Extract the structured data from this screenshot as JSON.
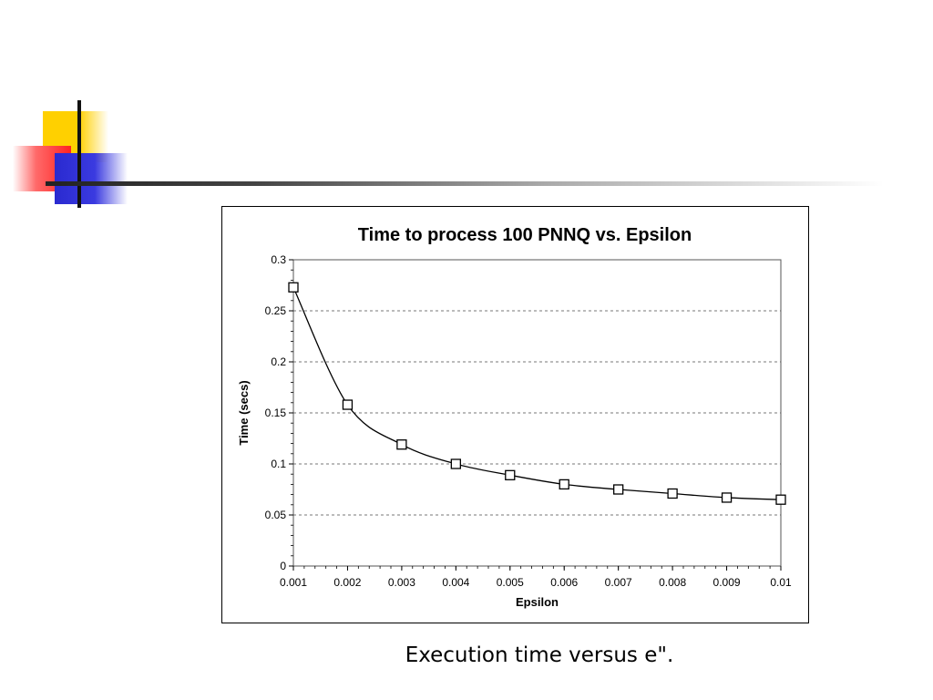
{
  "caption": "Execution time versus  e\".",
  "colors": {
    "yellow": "#ffd000",
    "red": "#ff2222",
    "blue": "#2a2ad0",
    "line": "#000000"
  },
  "chart_data": {
    "type": "line",
    "title": "Time to process 100 PNNQ vs. Epsilon",
    "xlabel": "Epsilon",
    "ylabel": "Time (secs)",
    "xlim": [
      0.001,
      0.01
    ],
    "ylim": [
      0,
      0.3
    ],
    "x_ticks": [
      "0.001",
      "0.002",
      "0.003",
      "0.004",
      "0.005",
      "0.006",
      "0.007",
      "0.008",
      "0.009",
      "0.01"
    ],
    "y_ticks": [
      "0",
      "0.05",
      "0.1",
      "0.15",
      "0.2",
      "0.25",
      "0.3"
    ],
    "grid": "horizontal dashed",
    "marker": "open-square",
    "series": [
      {
        "x": [
          0.001,
          0.002,
          0.003,
          0.004,
          0.005,
          0.006,
          0.007,
          0.008,
          0.009,
          0.01
        ],
        "y": [
          0.273,
          0.158,
          0.119,
          0.1,
          0.089,
          0.08,
          0.075,
          0.071,
          0.067,
          0.065
        ]
      }
    ]
  }
}
